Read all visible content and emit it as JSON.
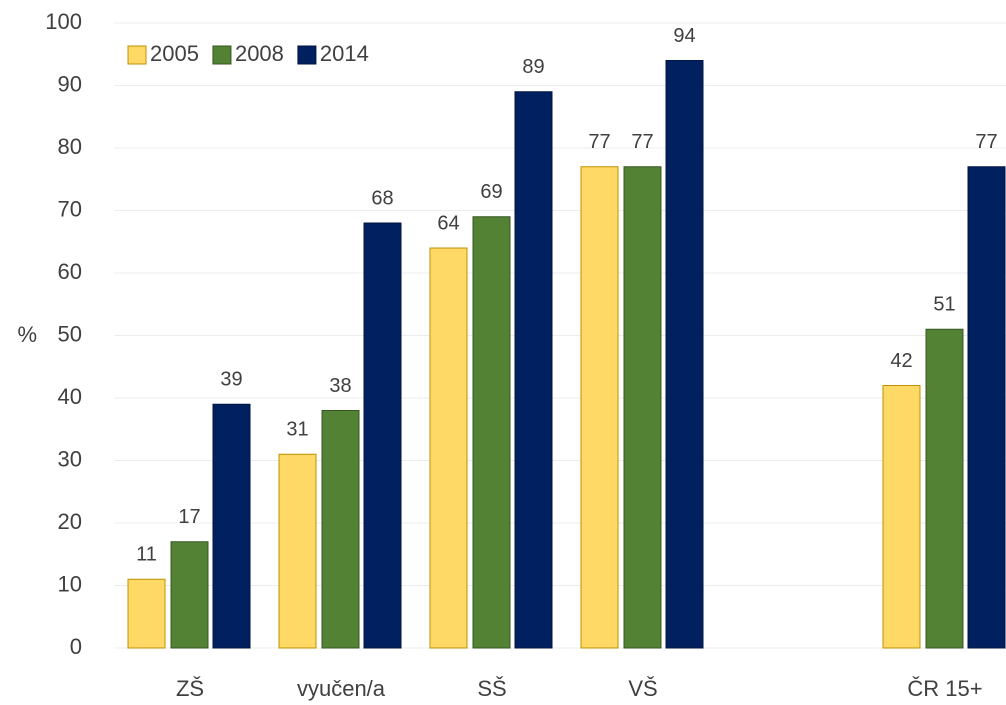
{
  "chart_data": {
    "type": "bar",
    "y_label": "%",
    "categories": [
      "ZŠ",
      "vyučen/a",
      "SŠ",
      "VŠ",
      null,
      "ČR 15+"
    ],
    "series": [
      {
        "name": "2005",
        "color": "#ffd966",
        "values": [
          11,
          31,
          64,
          77,
          null,
          42
        ]
      },
      {
        "name": "2008",
        "color": "#548235",
        "values": [
          17,
          38,
          69,
          77,
          null,
          51
        ]
      },
      {
        "name": "2014",
        "color": "#002060",
        "values": [
          39,
          68,
          89,
          94,
          null,
          77
        ]
      }
    ],
    "ylim": [
      0,
      100
    ],
    "yticks": [
      0,
      10,
      20,
      30,
      40,
      50,
      60,
      70,
      80,
      90,
      100
    ],
    "grid": true,
    "legend": "upper left"
  }
}
